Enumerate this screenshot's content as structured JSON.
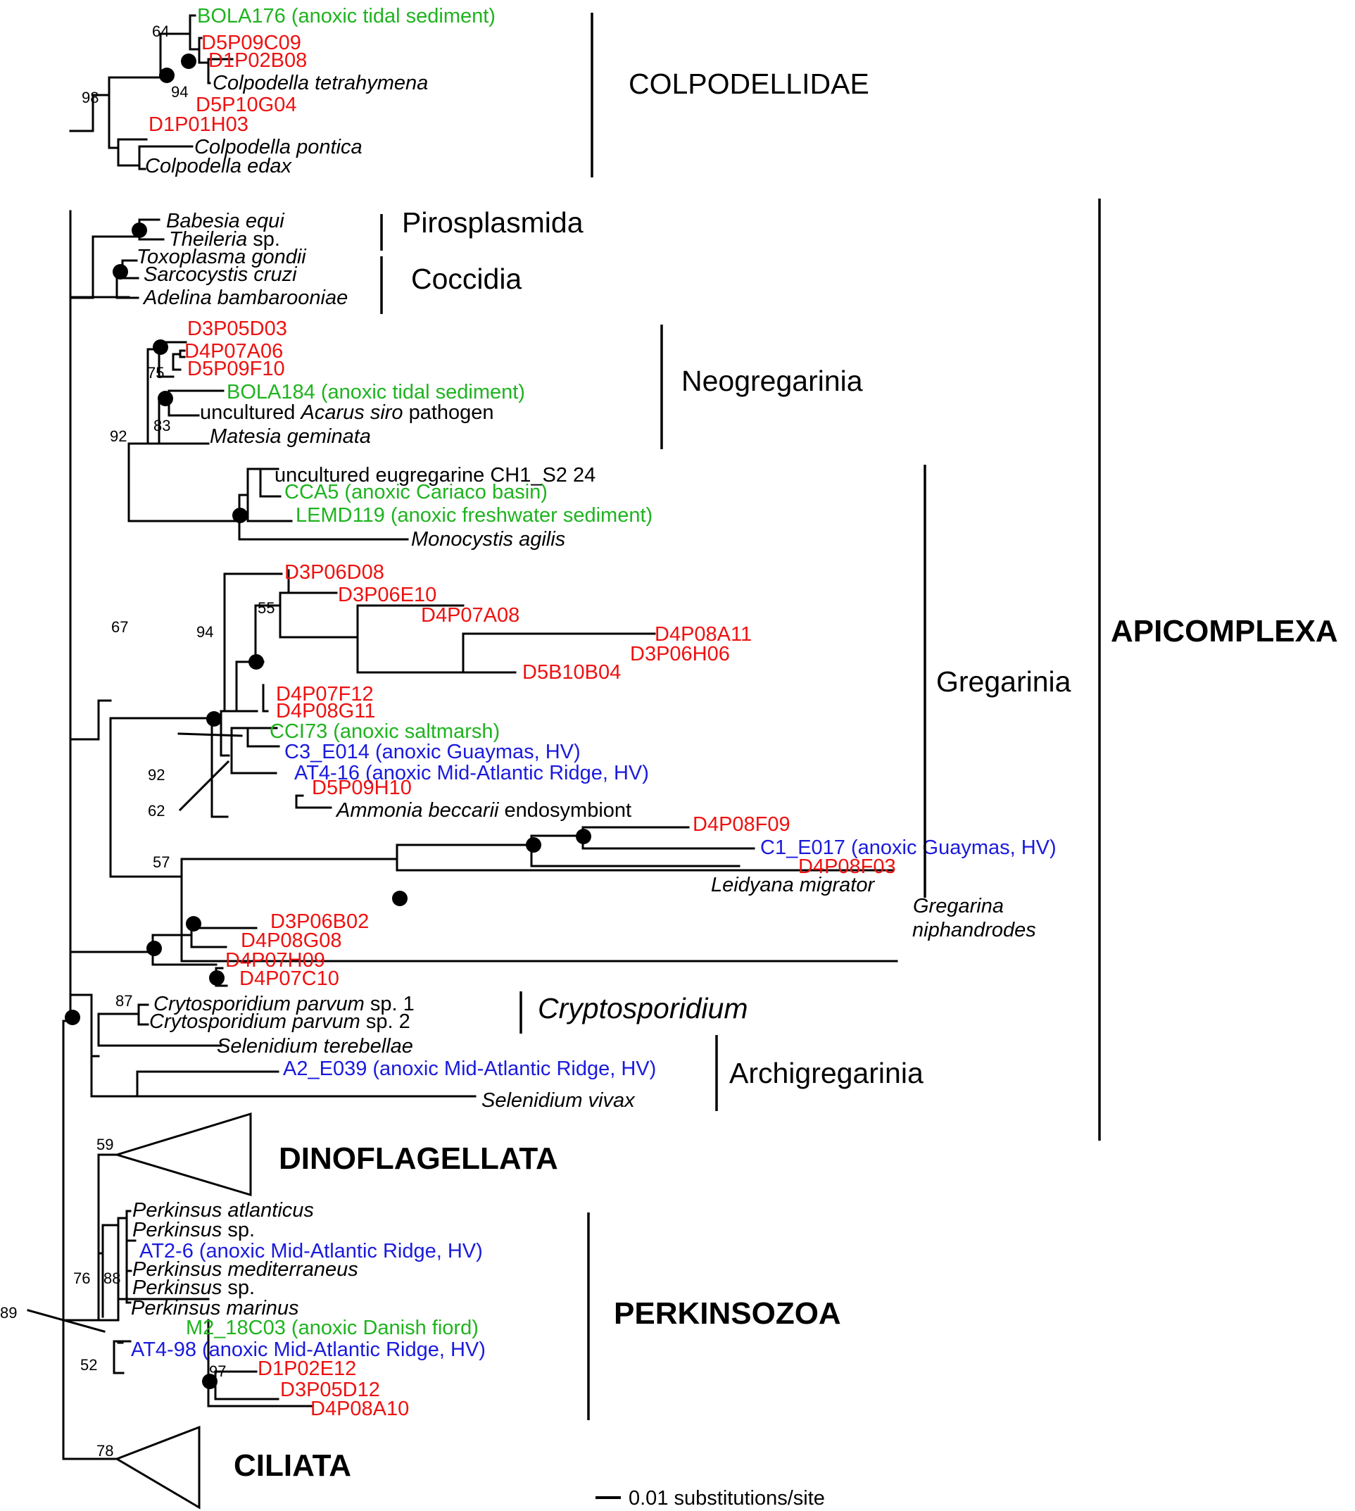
{
  "colors": {
    "green": "#1fb31f",
    "red": "#ee1111",
    "blue": "#1a1add",
    "black": "#000000"
  },
  "leaves": [
    {
      "id": "bola176",
      "color": "green",
      "parts": [
        {
          "t": "BOLA176 (anoxic tidal sediment)"
        }
      ]
    },
    {
      "id": "d5p09c09",
      "color": "red",
      "parts": [
        {
          "t": "D5P09C09"
        }
      ]
    },
    {
      "id": "d1p02b08",
      "color": "red",
      "parts": [
        {
          "t": "D1P02B08"
        }
      ]
    },
    {
      "id": "colp-tetra",
      "color": "black",
      "parts": [
        {
          "t": "Colpodella tetrahymena",
          "i": true
        }
      ]
    },
    {
      "id": "d5p10g04",
      "color": "red",
      "parts": [
        {
          "t": "D5P10G04"
        }
      ]
    },
    {
      "id": "d1p01h03",
      "color": "red",
      "parts": [
        {
          "t": "D1P01H03"
        }
      ]
    },
    {
      "id": "colp-pontica",
      "color": "black",
      "parts": [
        {
          "t": "Colpodella pontica",
          "i": true
        }
      ]
    },
    {
      "id": "colp-edax",
      "color": "black",
      "parts": [
        {
          "t": "Colpodella edax",
          "i": true
        }
      ]
    },
    {
      "id": "babesia",
      "color": "black",
      "parts": [
        {
          "t": "Babesia equi",
          "i": true
        }
      ]
    },
    {
      "id": "theileria",
      "color": "black",
      "parts": [
        {
          "t": "Theileria",
          "i": true
        },
        {
          "t": " sp."
        }
      ]
    },
    {
      "id": "toxoplasma",
      "color": "black",
      "parts": [
        {
          "t": "Toxoplasma gondii",
          "i": true
        }
      ]
    },
    {
      "id": "sarcocystis",
      "color": "black",
      "parts": [
        {
          "t": "Sarcocystis cruzi",
          "i": true
        }
      ]
    },
    {
      "id": "adelina",
      "color": "black",
      "parts": [
        {
          "t": "Adelina bambarooniae",
          "i": true
        }
      ]
    },
    {
      "id": "d3p05d03",
      "color": "red",
      "parts": [
        {
          "t": "D3P05D03"
        }
      ]
    },
    {
      "id": "d4p07a06",
      "color": "red",
      "parts": [
        {
          "t": "D4P07A06"
        }
      ]
    },
    {
      "id": "d5p09f10",
      "color": "red",
      "parts": [
        {
          "t": "D5P09F10"
        }
      ]
    },
    {
      "id": "bola184",
      "color": "green",
      "parts": [
        {
          "t": "BOLA184 (anoxic tidal sediment)"
        }
      ]
    },
    {
      "id": "acarus",
      "color": "black",
      "parts": [
        {
          "t": "uncultured "
        },
        {
          "t": "Acarus siro",
          "i": true
        },
        {
          "t": " pathogen"
        }
      ]
    },
    {
      "id": "matesia",
      "color": "black",
      "parts": [
        {
          "t": "Matesia geminata",
          "i": true
        }
      ]
    },
    {
      "id": "ch1s2",
      "color": "black",
      "parts": [
        {
          "t": "uncultured eugregarine CH1_S2 24"
        }
      ]
    },
    {
      "id": "cca5",
      "color": "green",
      "parts": [
        {
          "t": "CCA5 (anoxic Cariaco basin)"
        }
      ]
    },
    {
      "id": "lemd119",
      "color": "green",
      "parts": [
        {
          "t": "LEMD119 (anoxic freshwater sediment)"
        }
      ]
    },
    {
      "id": "monocystis",
      "color": "black",
      "parts": [
        {
          "t": "Monocystis agilis",
          "i": true
        }
      ]
    },
    {
      "id": "d3p06d08",
      "color": "red",
      "parts": [
        {
          "t": "D3P06D08"
        }
      ]
    },
    {
      "id": "d3p06e10",
      "color": "red",
      "parts": [
        {
          "t": "D3P06E10"
        }
      ]
    },
    {
      "id": "d4p07a08",
      "color": "red",
      "parts": [
        {
          "t": "D4P07A08"
        }
      ]
    },
    {
      "id": "d4p08a11",
      "color": "red",
      "parts": [
        {
          "t": "D4P08A11"
        }
      ]
    },
    {
      "id": "d3p06h06",
      "color": "red",
      "parts": [
        {
          "t": "D3P06H06"
        }
      ]
    },
    {
      "id": "d5b10b04",
      "color": "red",
      "parts": [
        {
          "t": "D5B10B04"
        }
      ]
    },
    {
      "id": "d4p07f12",
      "color": "red",
      "parts": [
        {
          "t": "D4P07F12"
        }
      ]
    },
    {
      "id": "d4p08g11",
      "color": "red",
      "parts": [
        {
          "t": "D4P08G11"
        }
      ]
    },
    {
      "id": "cci73",
      "color": "green",
      "parts": [
        {
          "t": "CCI73 (anoxic saltmarsh)"
        }
      ]
    },
    {
      "id": "c3e014",
      "color": "blue",
      "parts": [
        {
          "t": "C3_E014 (anoxic Guaymas, HV)"
        }
      ]
    },
    {
      "id": "at416",
      "color": "blue",
      "parts": [
        {
          "t": "AT4-16 (anoxic Mid-Atlantic Ridge, HV)"
        }
      ]
    },
    {
      "id": "d5p09h10",
      "color": "red",
      "parts": [
        {
          "t": "D5P09H10"
        }
      ]
    },
    {
      "id": "ammonia",
      "color": "black",
      "parts": [
        {
          "t": "Ammonia beccarii",
          "i": true
        },
        {
          "t": " endosymbiont"
        }
      ]
    },
    {
      "id": "d4p08f09",
      "color": "red",
      "parts": [
        {
          "t": "D4P08F09"
        }
      ]
    },
    {
      "id": "c1e017",
      "color": "blue",
      "parts": [
        {
          "t": "C1_E017 (anoxic Guaymas, HV)"
        }
      ]
    },
    {
      "id": "d4p08f03",
      "color": "red",
      "parts": [
        {
          "t": "D4P08F03"
        }
      ]
    },
    {
      "id": "leidyana",
      "color": "black",
      "parts": [
        {
          "t": "Leidyana migrator",
          "i": true
        }
      ]
    },
    {
      "id": "gregarina1",
      "color": "black",
      "parts": [
        {
          "t": "Gregarina",
          "i": true
        }
      ]
    },
    {
      "id": "gregarina2",
      "color": "black",
      "parts": [
        {
          "t": "niphandrodes",
          "i": true
        }
      ]
    },
    {
      "id": "d3p06b02",
      "color": "red",
      "parts": [
        {
          "t": "D3P06B02"
        }
      ]
    },
    {
      "id": "d4p08g08",
      "color": "red",
      "parts": [
        {
          "t": "D4P08G08"
        }
      ]
    },
    {
      "id": "d4p07h09",
      "color": "red",
      "parts": [
        {
          "t": "D4P07H09"
        }
      ]
    },
    {
      "id": "d4p07c10",
      "color": "red",
      "parts": [
        {
          "t": "D4P07C10"
        }
      ]
    },
    {
      "id": "crypto1",
      "color": "black",
      "parts": [
        {
          "t": "Crytosporidium parvum",
          "i": true
        },
        {
          "t": " sp. 1"
        }
      ]
    },
    {
      "id": "crypto2",
      "color": "black",
      "parts": [
        {
          "t": "Crytosporidium parvum",
          "i": true
        },
        {
          "t": " sp. 2"
        }
      ]
    },
    {
      "id": "selen-ter",
      "color": "black",
      "parts": [
        {
          "t": "Selenidium terebellae",
          "i": true
        }
      ]
    },
    {
      "id": "a2e039",
      "color": "blue",
      "parts": [
        {
          "t": "A2_E039 (anoxic Mid-Atlantic Ridge, HV)"
        }
      ]
    },
    {
      "id": "selen-viv",
      "color": "black",
      "parts": [
        {
          "t": "Selenidium vivax",
          "i": true
        }
      ]
    },
    {
      "id": "perk-atl",
      "color": "black",
      "parts": [
        {
          "t": "Perkinsus atlanticus",
          "i": true
        }
      ]
    },
    {
      "id": "perk-sp1",
      "color": "black",
      "parts": [
        {
          "t": "Perkinsus",
          "i": true
        },
        {
          "t": " sp."
        }
      ]
    },
    {
      "id": "at26",
      "color": "blue",
      "parts": [
        {
          "t": "AT2-6 (anoxic Mid-Atlantic Ridge, HV)"
        }
      ]
    },
    {
      "id": "perk-med",
      "color": "black",
      "parts": [
        {
          "t": "Perkinsus mediterraneus",
          "i": true
        }
      ]
    },
    {
      "id": "perk-sp2",
      "color": "black",
      "parts": [
        {
          "t": "Perkinsus",
          "i": true
        },
        {
          "t": " sp."
        }
      ]
    },
    {
      "id": "perk-mar",
      "color": "black",
      "parts": [
        {
          "t": "Perkinsus marinus",
          "i": true
        }
      ]
    },
    {
      "id": "m218c03",
      "color": "green",
      "parts": [
        {
          "t": "M2_18C03 (anoxic Danish fiord)"
        }
      ]
    },
    {
      "id": "at498",
      "color": "blue",
      "parts": [
        {
          "t": "AT4-98 (anoxic Mid-Atlantic Ridge, HV)"
        }
      ]
    },
    {
      "id": "d1p02e12",
      "color": "red",
      "parts": [
        {
          "t": "D1P02E12"
        }
      ]
    },
    {
      "id": "d3p05d12",
      "color": "red",
      "parts": [
        {
          "t": "D3P05D12"
        }
      ]
    },
    {
      "id": "d4p08a10",
      "color": "red",
      "parts": [
        {
          "t": "D4P08A10"
        }
      ]
    }
  ],
  "bootstrap": [
    {
      "id": "b64",
      "text": "64"
    },
    {
      "id": "b94a",
      "text": "94"
    },
    {
      "id": "b98",
      "text": "98"
    },
    {
      "id": "b75",
      "text": "75"
    },
    {
      "id": "b83",
      "text": "83"
    },
    {
      "id": "b92a",
      "text": "92"
    },
    {
      "id": "b55",
      "text": "55"
    },
    {
      "id": "b94b",
      "text": "94"
    },
    {
      "id": "b67",
      "text": "67"
    },
    {
      "id": "b92b",
      "text": "92"
    },
    {
      "id": "b62",
      "text": "62"
    },
    {
      "id": "b57",
      "text": "57"
    },
    {
      "id": "b87",
      "text": "87"
    },
    {
      "id": "b59",
      "text": "59"
    },
    {
      "id": "b76",
      "text": "76"
    },
    {
      "id": "b88",
      "text": "88"
    },
    {
      "id": "b89",
      "text": "89"
    },
    {
      "id": "b52",
      "text": "52"
    },
    {
      "id": "b97",
      "text": "97"
    },
    {
      "id": "b78",
      "text": "78"
    }
  ],
  "groups": [
    {
      "id": "colpodellidae",
      "text": "COLPODELLIDAE",
      "style": "grp"
    },
    {
      "id": "pirosplasmida",
      "text": "Pirosplasmida",
      "style": "grp"
    },
    {
      "id": "coccidia",
      "text": "Coccidia",
      "style": "grp"
    },
    {
      "id": "neogregarinia",
      "text": "Neogregarinia",
      "style": "grp"
    },
    {
      "id": "gregarinia",
      "text": "Gregarinia",
      "style": "grp"
    },
    {
      "id": "cryptosporidium",
      "text": "Cryptosporidium",
      "style": "grp-it"
    },
    {
      "id": "archigregarinia",
      "text": "Archigregarinia",
      "style": "grp"
    },
    {
      "id": "apicomplexa",
      "text": "APICOMPLEXA",
      "style": "big"
    },
    {
      "id": "dinoflagellata",
      "text": "DINOFLAGELLATA",
      "style": "big"
    },
    {
      "id": "perkinsozoa",
      "text": "PERKINSOZOA",
      "style": "big"
    },
    {
      "id": "ciliata",
      "text": "CILIATA",
      "style": "big"
    }
  ],
  "scale_bar": {
    "label": "0.01 substitutions/site"
  }
}
